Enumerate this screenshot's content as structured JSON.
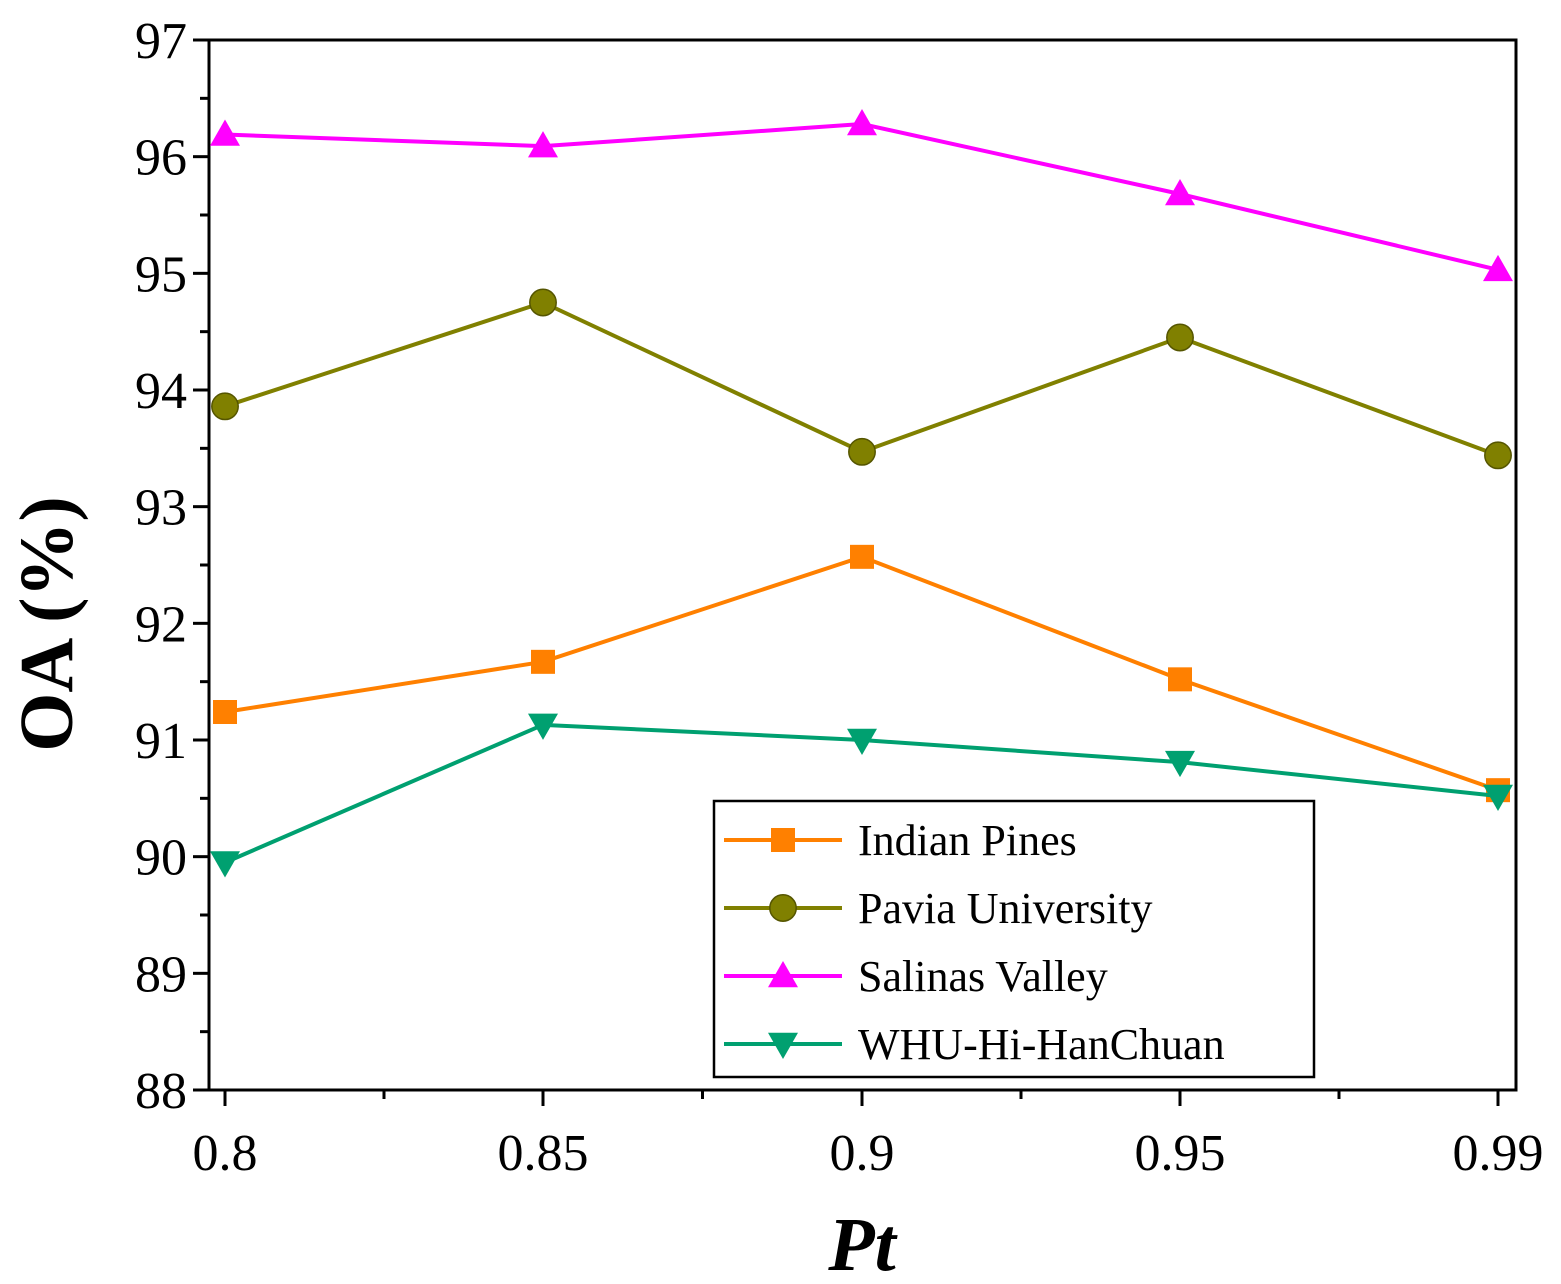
{
  "chart_data": {
    "type": "line",
    "title": "",
    "xlabel": "Pt",
    "ylabel": "OA (%)",
    "categories": [
      "0.8",
      "0.85",
      "0.9",
      "0.95",
      "0.99"
    ],
    "ylim": [
      88,
      97
    ],
    "yticks": [
      "88",
      "89",
      "90",
      "91",
      "92",
      "93",
      "94",
      "95",
      "96",
      "97"
    ],
    "legend_position": "bottom-right",
    "series": [
      {
        "name": "Indian Pines",
        "color": "#ff8000",
        "marker": "square",
        "values": [
          91.24,
          91.67,
          92.57,
          91.52,
          90.57
        ]
      },
      {
        "name": "Pavia University",
        "color": "#808000",
        "marker": "circle",
        "values": [
          93.86,
          94.75,
          93.47,
          94.45,
          93.44
        ]
      },
      {
        "name": "Salinas Valley",
        "color": "#ff00ff",
        "marker": "triangle-up",
        "values": [
          96.19,
          96.09,
          96.28,
          95.68,
          95.03
        ]
      },
      {
        "name": "WHU-Hi-HanChuan",
        "color": "#00a070",
        "marker": "triangle-down",
        "values": [
          89.95,
          91.13,
          91.0,
          90.81,
          90.52
        ]
      }
    ]
  }
}
